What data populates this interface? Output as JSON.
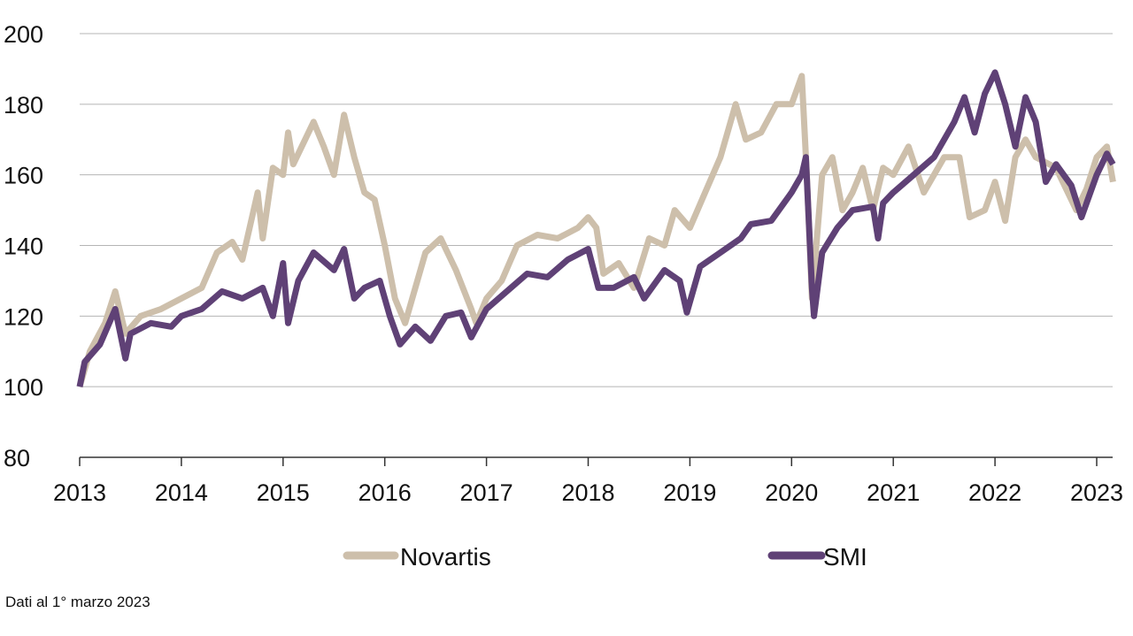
{
  "chart_data": {
    "type": "line",
    "title": "",
    "xlabel": "",
    "ylabel": "",
    "xlim": [
      2013,
      2023.16
    ],
    "ylim": [
      80,
      200
    ],
    "grid": true,
    "legend_placement": "bottom",
    "x_ticks": [
      "2013",
      "2014",
      "2015",
      "2016",
      "2017",
      "2018",
      "2019",
      "2020",
      "2021",
      "2022",
      "2023"
    ],
    "y_ticks": [
      "80",
      "100",
      "120",
      "140",
      "160",
      "180",
      "200"
    ],
    "series": [
      {
        "name": "Novartis",
        "color": "#cdbfab",
        "points": [
          [
            2013.0,
            100
          ],
          [
            2013.1,
            110
          ],
          [
            2013.25,
            118
          ],
          [
            2013.35,
            127
          ],
          [
            2013.45,
            115
          ],
          [
            2013.6,
            120
          ],
          [
            2013.8,
            122
          ],
          [
            2014.0,
            125
          ],
          [
            2014.2,
            128
          ],
          [
            2014.35,
            138
          ],
          [
            2014.5,
            141
          ],
          [
            2014.6,
            136
          ],
          [
            2014.75,
            155
          ],
          [
            2014.8,
            142
          ],
          [
            2014.9,
            162
          ],
          [
            2015.0,
            160
          ],
          [
            2015.05,
            172
          ],
          [
            2015.1,
            163
          ],
          [
            2015.3,
            175
          ],
          [
            2015.4,
            168
          ],
          [
            2015.5,
            160
          ],
          [
            2015.6,
            177
          ],
          [
            2015.7,
            165
          ],
          [
            2015.8,
            155
          ],
          [
            2015.9,
            153
          ],
          [
            2016.0,
            140
          ],
          [
            2016.1,
            125
          ],
          [
            2016.2,
            118
          ],
          [
            2016.3,
            128
          ],
          [
            2016.4,
            138
          ],
          [
            2016.55,
            142
          ],
          [
            2016.7,
            133
          ],
          [
            2016.85,
            122
          ],
          [
            2016.9,
            118
          ],
          [
            2017.0,
            125
          ],
          [
            2017.15,
            130
          ],
          [
            2017.3,
            140
          ],
          [
            2017.5,
            143
          ],
          [
            2017.7,
            142
          ],
          [
            2017.9,
            145
          ],
          [
            2018.0,
            148
          ],
          [
            2018.08,
            145
          ],
          [
            2018.15,
            132
          ],
          [
            2018.3,
            135
          ],
          [
            2018.45,
            128
          ],
          [
            2018.6,
            142
          ],
          [
            2018.75,
            140
          ],
          [
            2018.85,
            150
          ],
          [
            2019.0,
            145
          ],
          [
            2019.15,
            155
          ],
          [
            2019.3,
            165
          ],
          [
            2019.45,
            180
          ],
          [
            2019.55,
            170
          ],
          [
            2019.7,
            172
          ],
          [
            2019.85,
            180
          ],
          [
            2020.0,
            180
          ],
          [
            2020.1,
            188
          ],
          [
            2020.15,
            160
          ],
          [
            2020.2,
            125
          ],
          [
            2020.3,
            160
          ],
          [
            2020.4,
            165
          ],
          [
            2020.5,
            150
          ],
          [
            2020.6,
            155
          ],
          [
            2020.7,
            162
          ],
          [
            2020.8,
            150
          ],
          [
            2020.9,
            162
          ],
          [
            2021.0,
            160
          ],
          [
            2021.15,
            168
          ],
          [
            2021.3,
            155
          ],
          [
            2021.5,
            165
          ],
          [
            2021.65,
            165
          ],
          [
            2021.75,
            148
          ],
          [
            2021.9,
            150
          ],
          [
            2022.0,
            158
          ],
          [
            2022.1,
            147
          ],
          [
            2022.2,
            165
          ],
          [
            2022.3,
            170
          ],
          [
            2022.4,
            165
          ],
          [
            2022.6,
            162
          ],
          [
            2022.8,
            150
          ],
          [
            2022.9,
            156
          ],
          [
            2023.0,
            165
          ],
          [
            2023.1,
            168
          ],
          [
            2023.16,
            158
          ]
        ]
      },
      {
        "name": "SMI",
        "color": "#5f4176",
        "points": [
          [
            2013.0,
            100
          ],
          [
            2013.05,
            107
          ],
          [
            2013.2,
            112
          ],
          [
            2013.35,
            122
          ],
          [
            2013.45,
            108
          ],
          [
            2013.5,
            115
          ],
          [
            2013.7,
            118
          ],
          [
            2013.9,
            117
          ],
          [
            2014.0,
            120
          ],
          [
            2014.2,
            122
          ],
          [
            2014.4,
            127
          ],
          [
            2014.6,
            125
          ],
          [
            2014.8,
            128
          ],
          [
            2014.9,
            120
          ],
          [
            2015.0,
            135
          ],
          [
            2015.05,
            118
          ],
          [
            2015.15,
            130
          ],
          [
            2015.3,
            138
          ],
          [
            2015.5,
            133
          ],
          [
            2015.6,
            139
          ],
          [
            2015.7,
            125
          ],
          [
            2015.8,
            128
          ],
          [
            2015.95,
            130
          ],
          [
            2016.05,
            120
          ],
          [
            2016.15,
            112
          ],
          [
            2016.3,
            117
          ],
          [
            2016.45,
            113
          ],
          [
            2016.6,
            120
          ],
          [
            2016.75,
            121
          ],
          [
            2016.85,
            114
          ],
          [
            2017.0,
            122
          ],
          [
            2017.2,
            127
          ],
          [
            2017.4,
            132
          ],
          [
            2017.6,
            131
          ],
          [
            2017.8,
            136
          ],
          [
            2018.0,
            139
          ],
          [
            2018.1,
            128
          ],
          [
            2018.25,
            128
          ],
          [
            2018.45,
            131
          ],
          [
            2018.55,
            125
          ],
          [
            2018.75,
            133
          ],
          [
            2018.9,
            130
          ],
          [
            2018.97,
            121
          ],
          [
            2019.1,
            134
          ],
          [
            2019.3,
            138
          ],
          [
            2019.5,
            142
          ],
          [
            2019.6,
            146
          ],
          [
            2019.8,
            147
          ],
          [
            2020.0,
            155
          ],
          [
            2020.1,
            160
          ],
          [
            2020.14,
            165
          ],
          [
            2020.2,
            128
          ],
          [
            2020.22,
            120
          ],
          [
            2020.3,
            138
          ],
          [
            2020.45,
            145
          ],
          [
            2020.6,
            150
          ],
          [
            2020.8,
            151
          ],
          [
            2020.85,
            142
          ],
          [
            2020.9,
            152
          ],
          [
            2021.0,
            155
          ],
          [
            2021.2,
            160
          ],
          [
            2021.4,
            165
          ],
          [
            2021.5,
            170
          ],
          [
            2021.6,
            175
          ],
          [
            2021.7,
            182
          ],
          [
            2021.8,
            172
          ],
          [
            2021.9,
            183
          ],
          [
            2022.0,
            189
          ],
          [
            2022.1,
            180
          ],
          [
            2022.2,
            168
          ],
          [
            2022.3,
            182
          ],
          [
            2022.4,
            175
          ],
          [
            2022.5,
            158
          ],
          [
            2022.6,
            163
          ],
          [
            2022.75,
            157
          ],
          [
            2022.85,
            148
          ],
          [
            2023.0,
            160
          ],
          [
            2023.1,
            166
          ],
          [
            2023.16,
            163
          ]
        ]
      }
    ]
  },
  "footnote": "Dati al 1° marzo 2023"
}
